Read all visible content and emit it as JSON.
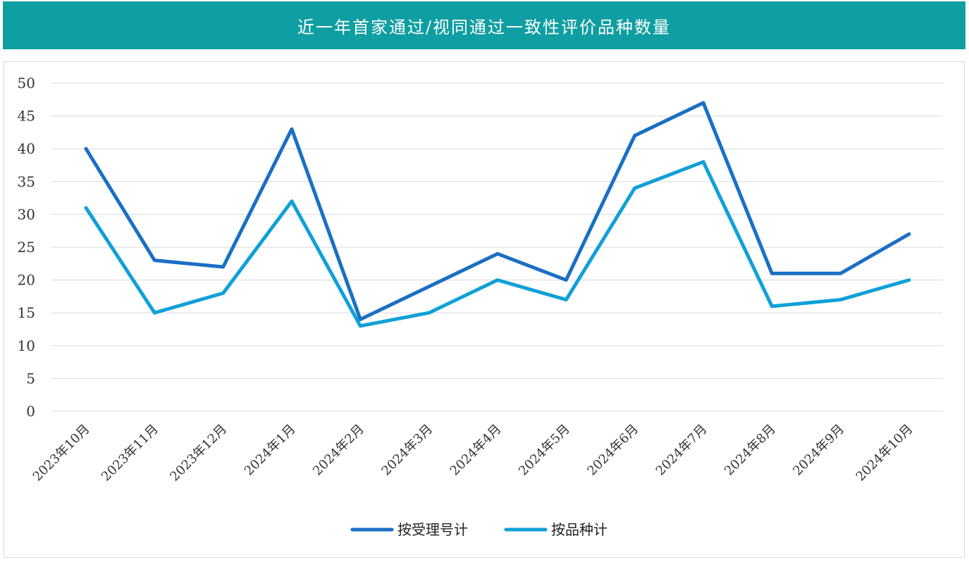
{
  "title": "近一年首家通过/视同通过一致性评价品种数量",
  "colors": {
    "title_bg": "#0f9ea2",
    "series1": "#1a6fc4",
    "series2": "#0fa0d8",
    "grid": "#d9d9d9"
  },
  "chart_data": {
    "type": "line",
    "categories": [
      "2023年10月",
      "2023年11月",
      "2023年12月",
      "2024年1月",
      "2024年2月",
      "2024年3月",
      "2024年4月",
      "2024年5月",
      "2024年6月",
      "2024年7月",
      "2024年8月",
      "2024年9月",
      "2024年10月"
    ],
    "series": [
      {
        "name": "按受理号计",
        "color": "#1a6fc4",
        "values": [
          40,
          23,
          22,
          43,
          14,
          19,
          24,
          20,
          42,
          47,
          21,
          21,
          27
        ]
      },
      {
        "name": "按品种计",
        "color": "#0fa0d8",
        "values": [
          31,
          15,
          18,
          32,
          13,
          15,
          20,
          17,
          34,
          38,
          16,
          17,
          20
        ]
      }
    ],
    "ylim": [
      0,
      50
    ],
    "yticks": [
      0,
      5,
      10,
      15,
      20,
      25,
      30,
      35,
      40,
      45,
      50
    ],
    "grid": true,
    "legend_position": "bottom-center"
  }
}
